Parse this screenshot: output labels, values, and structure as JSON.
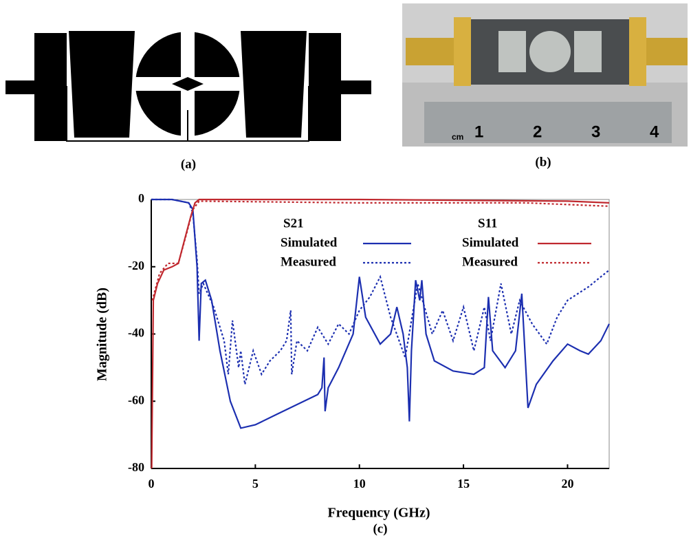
{
  "panels": {
    "a": "(a)",
    "b": "(b)",
    "c": "(c)"
  },
  "ruler": {
    "unit": "cm",
    "marks": [
      "1",
      "2",
      "3",
      "4"
    ]
  },
  "chart_data": {
    "type": "line",
    "xlabel": "Frequency (GHz)",
    "ylabel": "Magnitude (dB)",
    "xlim": [
      0,
      22
    ],
    "xticks": [
      0,
      5,
      10,
      15,
      20
    ],
    "ylim": [
      -80,
      0
    ],
    "yticks": [
      0,
      -20,
      -40,
      -60,
      -80
    ],
    "series": [
      {
        "group": "S21",
        "name": "Simulated",
        "color": "#1c2fb0",
        "dash": "solid",
        "x": [
          0,
          1.0,
          1.8,
          2.0,
          2.2,
          2.3,
          2.4,
          2.6,
          2.9,
          3.3,
          3.8,
          4.3,
          5,
          6,
          7,
          8,
          8.2,
          8.3,
          8.35,
          8.5,
          9,
          9.7,
          10,
          10.3,
          11,
          11.5,
          11.8,
          12.1,
          12.3,
          12.4,
          12.5,
          12.7,
          12.9,
          13.0,
          13.2,
          13.6,
          14.5,
          15.5,
          16,
          16.2,
          16.4,
          17,
          17.5,
          17.8,
          18.1,
          18.5,
          19.3,
          20,
          20.6,
          21,
          21.6,
          22
        ],
        "values": [
          0,
          0,
          -1,
          -3,
          -20,
          -42,
          -25,
          -24,
          -30,
          -45,
          -60,
          -68,
          -67,
          -64,
          -61,
          -58,
          -56,
          -47,
          -63,
          -56,
          -50,
          -40,
          -23,
          -35,
          -43,
          -40,
          -32,
          -40,
          -50,
          -66,
          -45,
          -24,
          -30,
          -24,
          -40,
          -48,
          -51,
          -52,
          -50,
          -29,
          -45,
          -50,
          -45,
          -28,
          -62,
          -55,
          -48,
          -43,
          -45,
          -46,
          -42,
          -37
        ]
      },
      {
        "group": "S21",
        "name": "Measured",
        "color": "#1c2fb0",
        "dash": "dotted",
        "x": [
          0,
          1.0,
          1.8,
          2.0,
          2.2,
          2.3,
          2.5,
          3,
          3.5,
          3.7,
          3.9,
          4.2,
          4.3,
          4.5,
          4.9,
          5.3,
          5.7,
          6.2,
          6.5,
          6.7,
          6.75,
          7,
          7.5,
          8,
          8.5,
          9,
          9.5,
          10,
          10.5,
          11,
          11.5,
          12.2,
          12.8,
          13.5,
          14,
          14.5,
          15,
          15.5,
          16,
          16.3,
          16.8,
          17.3,
          17.7,
          18.3,
          19,
          19.5,
          20,
          21,
          22
        ],
        "values": [
          0,
          0,
          -1,
          -4,
          -18,
          -28,
          -25,
          -32,
          -42,
          -52,
          -36,
          -50,
          -45,
          -55,
          -45,
          -52,
          -48,
          -45,
          -42,
          -33,
          -52,
          -42,
          -45,
          -38,
          -43,
          -37,
          -40,
          -33,
          -29,
          -23,
          -35,
          -47,
          -25,
          -40,
          -33,
          -42,
          -32,
          -45,
          -32,
          -42,
          -25,
          -40,
          -30,
          -37,
          -43,
          -35,
          -30,
          -26,
          -21
        ]
      },
      {
        "group": "S11",
        "name": "Simulated",
        "color": "#c0282e",
        "dash": "solid",
        "x": [
          0.02,
          0.1,
          0.3,
          0.6,
          1.0,
          1.3,
          1.6,
          1.9,
          2.1,
          2.3,
          10,
          20,
          22
        ],
        "values": [
          -80,
          -30,
          -25,
          -21,
          -20,
          -19,
          -12,
          -5,
          -1,
          0,
          0,
          -0.5,
          -1
        ]
      },
      {
        "group": "S11",
        "name": "Measured",
        "color": "#c0282e",
        "dash": "dotted",
        "x": [
          0.05,
          0.4,
          0.8,
          1.3,
          1.7,
          2.0,
          2.3,
          10,
          18,
          22
        ],
        "values": [
          -30,
          -22,
          -19,
          -19,
          -10,
          -3,
          -0.5,
          -1,
          -1,
          -2
        ]
      }
    ]
  }
}
